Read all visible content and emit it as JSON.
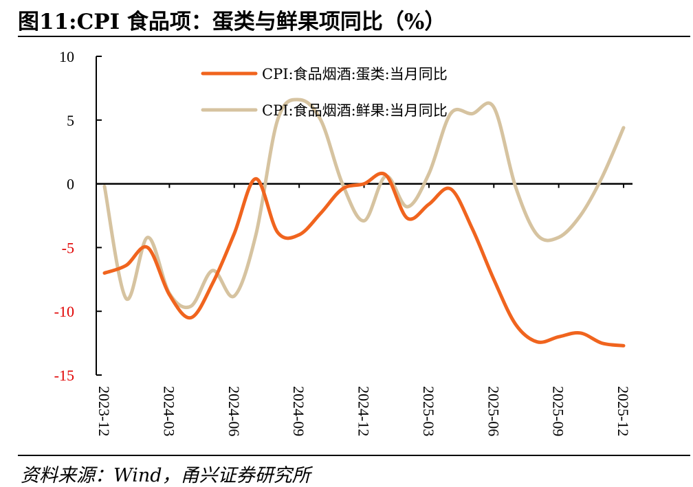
{
  "title": "图11:CPI 食品项：蛋类与鲜果项同比（%）",
  "source": "资料来源：Wind，甬兴证券研究所",
  "colors": {
    "eggs": "#F0641E",
    "fruit": "#D6C3A0",
    "negative_tick": "#E00000",
    "axis": "#000000"
  },
  "chart_data": {
    "type": "line",
    "title": "CPI 食品项：蛋类与鲜果项同比（%）",
    "ylim": [
      -15,
      10
    ],
    "yticks": [
      10,
      5,
      0,
      -5,
      -10,
      -15
    ],
    "ytick_labels": [
      "10",
      "5",
      "0",
      "-5",
      "-10",
      "-15"
    ],
    "x": [
      "2023-12",
      "2024-01",
      "2024-02",
      "2024-03",
      "2024-04",
      "2024-05",
      "2024-06",
      "2024-07",
      "2024-08",
      "2024-09",
      "2024-10",
      "2024-11",
      "2024-12",
      "2025-01",
      "2025-02",
      "2025-03",
      "2025-04",
      "2025-05",
      "2025-06",
      "2025-07",
      "2025-08",
      "2025-09",
      "2025-10",
      "2025-11",
      "2025-12"
    ],
    "xtick_labels": [
      "2023-12",
      "2024-03",
      "2024-06",
      "2024-09",
      "2024-12",
      "2025-03",
      "2025-06",
      "2025-09",
      "2025-12"
    ],
    "series": [
      {
        "name": "CPI:食品烟酒:蛋类:当月同比",
        "values": [
          -7.0,
          -6.4,
          -5.0,
          -8.7,
          -10.5,
          -7.8,
          -3.9,
          0.4,
          -3.8,
          -4.0,
          -2.3,
          -0.4,
          0.0,
          0.7,
          -2.7,
          -1.6,
          -0.4,
          -3.5,
          -7.5,
          -11.0,
          -12.4,
          -12.0,
          -11.7,
          -12.5,
          -12.7
        ]
      },
      {
        "name": "CPI:食品烟酒:鲜果:当月同比",
        "values": [
          -0.2,
          -9.0,
          -4.2,
          -8.6,
          -9.6,
          -6.8,
          -8.8,
          -4.0,
          5.0,
          6.6,
          5.0,
          0.0,
          -2.9,
          0.6,
          -1.8,
          0.8,
          5.5,
          5.5,
          6.0,
          -0.2,
          -4.0,
          -4.2,
          -2.5,
          0.5,
          4.4
        ]
      }
    ]
  }
}
